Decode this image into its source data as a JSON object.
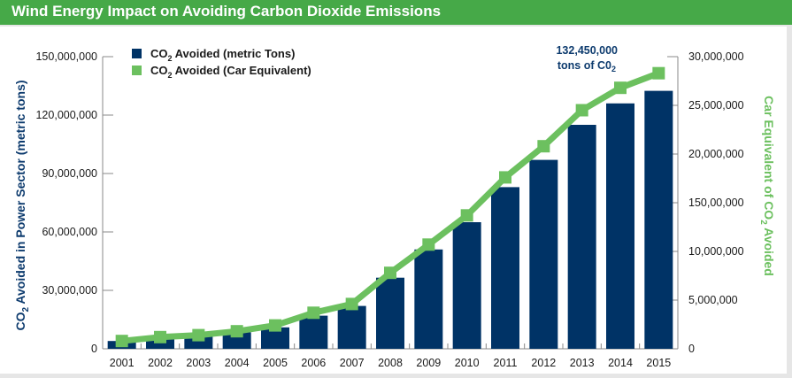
{
  "header": {
    "title": "Wind Energy Impact on Avoiding Carbon Dioxide Emissions"
  },
  "colors": {
    "bar": "#003366",
    "line": "#6cc05f",
    "header": "#46a948",
    "axis": "#888888"
  },
  "chart_data": {
    "type": "bar",
    "title": "Wind Energy Impact on Avoiding Carbon Dioxide Emissions",
    "categories": [
      "2001",
      "2002",
      "2003",
      "2004",
      "2005",
      "2006",
      "2007",
      "2008",
      "2009",
      "2010",
      "2011",
      "2012",
      "2013",
      "2014",
      "2015"
    ],
    "series": [
      {
        "name": "CO2 Avoided (metric Tons)",
        "type": "bar",
        "axis": "left",
        "values": [
          4000000,
          6000000,
          7000000,
          8500000,
          11000000,
          17000000,
          22000000,
          36500000,
          51000000,
          65000000,
          83000000,
          97000000,
          115000000,
          126000000,
          132450000
        ]
      },
      {
        "name": "CO2 Avoided (Car Equivalent)",
        "type": "line",
        "axis": "right",
        "values": [
          800000,
          1200000,
          1400000,
          1800000,
          2400000,
          3700000,
          4600000,
          7800000,
          10700000,
          13700000,
          17600000,
          20800000,
          24500000,
          26800000,
          28300000
        ]
      }
    ],
    "legend": {
      "position": "top-left",
      "items": [
        {
          "prefix": "CO",
          "sub": "2",
          "suffix": " Avoided (metric Tons)"
        },
        {
          "prefix": "CO",
          "sub": "2",
          "suffix": " Avoided (Car Equivalent)"
        }
      ]
    },
    "left_axis": {
      "label_prefix": "CO",
      "label_sub": "2",
      "label_suffix": " Avoided in Power Sector (metric tons)",
      "ylim": [
        0,
        150000000
      ],
      "ticks": [
        "0",
        "30,000,000",
        "60,000,000",
        "90,000,000",
        "120,000,000",
        "150,000,000"
      ]
    },
    "right_axis": {
      "label_prefix": "Car Equivalent of CO",
      "label_sub": "2",
      "label_suffix": " Avoided",
      "ylim": [
        0,
        30000000
      ],
      "ticks": [
        "0",
        "5,000,000",
        "10,000,000",
        "150,00,000",
        "20,000,000",
        "25,000,000",
        "30,000,000"
      ]
    },
    "annotation": {
      "line1": "132,450,000",
      "line2_prefix": "tons of C0",
      "line2_sub": "2"
    },
    "grid": false
  }
}
